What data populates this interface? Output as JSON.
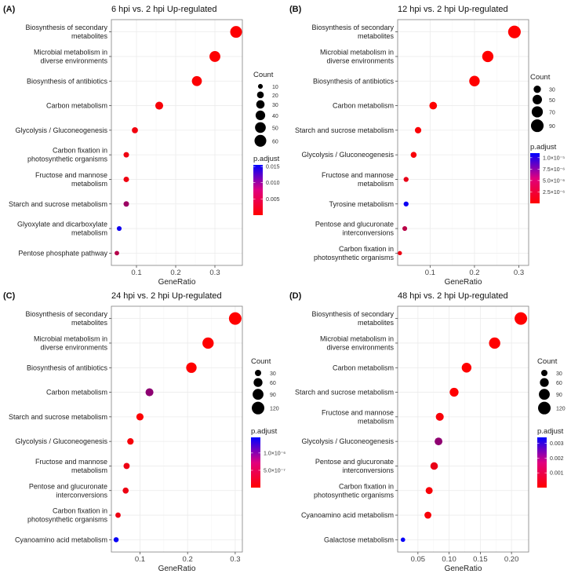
{
  "chart_data": [
    {
      "type": "scatter",
      "tag": "(A)",
      "title": "6 hpi vs. 2 hpi Up-regulated",
      "xlabel": "GeneRatio",
      "xlim": [
        0.036,
        0.37
      ],
      "xticks": [
        0.1,
        0.2,
        0.3
      ],
      "xtick_labels": [
        "0.1",
        "0.2",
        "0.3"
      ],
      "categories": [
        "Biosynthesis of secondary\nmetabolites",
        "Microbial metabolism in\ndiverse environments",
        "Biosynthesis of antibiotics",
        "Carbon metabolism",
        "Glycolysis / Gluconeogenesis",
        "Carbon fixation in\nphotosynthetic organisms",
        "Fructose and mannose\nmetabolism",
        "Starch and sucrose metabolism",
        "Glyoxylate and dicarboxylate\nmetabolism",
        "Pentose phosphate pathway"
      ],
      "gene_ratio": [
        0.354,
        0.3,
        0.254,
        0.158,
        0.096,
        0.074,
        0.074,
        0.074,
        0.056,
        0.05
      ],
      "count": [
        60,
        51,
        43,
        27,
        16,
        13,
        13,
        13,
        10,
        9
      ],
      "p_adjust": [
        0.0001,
        0.0001,
        0.0002,
        0.0005,
        0.0008,
        0.001,
        0.001,
        0.006,
        0.0145,
        0.0045
      ],
      "size_legend": {
        "title": "Count",
        "values": [
          10,
          20,
          30,
          40,
          50,
          60
        ],
        "labels": [
          "10",
          "20",
          "30",
          "40",
          "50",
          "60"
        ]
      },
      "color_legend": {
        "title": "p.adjust",
        "range": [
          0,
          0.0155
        ],
        "ticks": [
          0.015,
          0.01,
          0.005
        ],
        "labels": [
          "0.015",
          "0.010",
          "0.005"
        ]
      }
    },
    {
      "type": "scatter",
      "tag": "(B)",
      "title": "12 hpi vs. 2 hpi Up-regulated",
      "xlabel": "GeneRatio",
      "xlim": [
        0.027,
        0.322
      ],
      "xticks": [
        0.1,
        0.2,
        0.3
      ],
      "xtick_labels": [
        "0.1",
        "0.2",
        "0.3"
      ],
      "categories": [
        "Biosynthesis of secondary\nmetabolites",
        "Microbial metabolism in\ndiverse environments",
        "Biosynthesis of antibiotics",
        "Carbon metabolism",
        "Starch and sucrose metabolism",
        "Glycolysis / Gluconeogenesis",
        "Fructose and mannose\nmetabolism",
        "Tyrosine metabolism",
        "Pentose and glucuronate\ninterconversions",
        "Carbon fixation in\nphotosynthetic organisms"
      ],
      "gene_ratio": [
        0.29,
        0.23,
        0.2,
        0.107,
        0.073,
        0.063,
        0.046,
        0.046,
        0.043,
        0.032
      ],
      "count": [
        90,
        71,
        62,
        33,
        23,
        20,
        14,
        14,
        13,
        10
      ],
      "p_adjust": [
        1e-09,
        1e-09,
        2e-09,
        5e-08,
        2e-07,
        3e-07,
        1e-06,
        1.05e-05,
        3e-06,
        8e-07
      ],
      "size_legend": {
        "title": "Count",
        "values": [
          30,
          50,
          70,
          90
        ],
        "labels": [
          "30",
          "50",
          "70",
          "90"
        ]
      },
      "color_legend": {
        "title": "p.adjust",
        "range": [
          0,
          1.1e-05
        ],
        "ticks": [
          1e-05,
          7.5e-06,
          5e-06,
          2.5e-06
        ],
        "labels": [
          "1.0×10⁻⁵",
          "7.5×10⁻⁶",
          "5.0×10⁻⁶",
          "2.5×10⁻⁶"
        ]
      }
    },
    {
      "type": "scatter",
      "tag": "(C)",
      "title": "24 hpi vs. 2 hpi Up-regulated",
      "xlabel": "GeneRatio",
      "xlim": [
        0.04,
        0.315
      ],
      "xticks": [
        0.1,
        0.2,
        0.3
      ],
      "xtick_labels": [
        "0.1",
        "0.2",
        "0.3"
      ],
      "categories": [
        "Biosynthesis of secondary\nmetabolites",
        "Microbial metabolism in\ndiverse environments",
        "Biosynthesis of antibiotics",
        "Carbon metabolism",
        "Starch and sucrose metabolism",
        "Glycolysis / Gluconeogenesis",
        "Fructose and mannose\nmetabolism",
        "Pentose and glucuronate\ninterconversions",
        "Carbon fixation in\nphotosynthetic organisms",
        "Cyanoamino acid metabolism"
      ],
      "gene_ratio": [
        0.3,
        0.243,
        0.208,
        0.12,
        0.1,
        0.08,
        0.072,
        0.07,
        0.054,
        0.05
      ],
      "count": [
        120,
        97,
        83,
        48,
        40,
        32,
        29,
        28,
        22,
        20
      ],
      "p_adjust": [
        1e-10,
        1e-10,
        1e-10,
        6.5e-07,
        1e-08,
        5e-08,
        1e-07,
        1e-07,
        1e-07,
        1.4e-06
      ],
      "size_legend": {
        "title": "Count",
        "values": [
          30,
          60,
          90,
          120
        ],
        "labels": [
          "30",
          "60",
          "90",
          "120"
        ]
      },
      "color_legend": {
        "title": "p.adjust",
        "range": [
          0,
          1.45e-06
        ],
        "ticks": [
          1e-06,
          5e-07
        ],
        "labels": [
          "1.0×10⁻⁶",
          "5.0×10⁻⁷"
        ]
      }
    },
    {
      "type": "scatter",
      "tag": "(D)",
      "title": "48 hpi vs. 2 hpi Up-regulated",
      "xlabel": "GeneRatio",
      "xlim": [
        0.0175,
        0.2275
      ],
      "xticks": [
        0.05,
        0.1,
        0.15,
        0.2
      ],
      "xtick_labels": [
        "0.05",
        "0.10",
        "0.15",
        "0.20"
      ],
      "categories": [
        "Biosynthesis of secondary\nmetabolites",
        "Microbial metabolism in\ndiverse environments",
        "Carbon metabolism",
        "Starch and sucrose metabolism",
        "Fructose and mannose\nmetabolism",
        "Glycolysis / Gluconeogenesis",
        "Pentose and glucuronate\ninterconversions",
        "Carbon fixation in\nphotosynthetic organisms",
        "Cyanoamino acid metabolism",
        "Galactose metabolism"
      ],
      "gene_ratio": [
        0.215,
        0.173,
        0.128,
        0.108,
        0.085,
        0.083,
        0.076,
        0.068,
        0.066,
        0.026
      ],
      "count": [
        120,
        97,
        72,
        60,
        48,
        46,
        43,
        38,
        37,
        15
      ],
      "p_adjust": [
        1e-08,
        1e-08,
        1e-06,
        1e-05,
        0.0001,
        0.0015,
        0.0003,
        0.0001,
        0.0001,
        0.0033
      ],
      "size_legend": {
        "title": "Count",
        "values": [
          30,
          60,
          90,
          120
        ],
        "labels": [
          "30",
          "60",
          "90",
          "120"
        ]
      },
      "color_legend": {
        "title": "p.adjust",
        "range": [
          0,
          0.0034
        ],
        "ticks": [
          0.003,
          0.002,
          0.001
        ],
        "labels": [
          "0.003",
          "0.002",
          "0.001"
        ]
      }
    }
  ],
  "colors": {
    "low": "#FF0000",
    "high": "#0000FF",
    "grid": "#EBEBEB",
    "frame": "#7F7F7F"
  }
}
